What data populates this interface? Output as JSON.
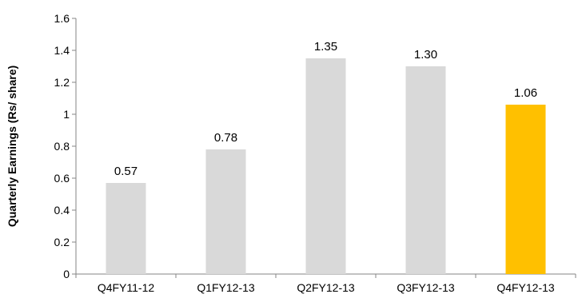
{
  "chart_data": {
    "type": "bar",
    "title": "",
    "xlabel": "",
    "ylabel": "Quarterly Earnings (Rs/ share)",
    "categories": [
      "Q4FY11-12",
      "Q1FY12-13",
      "Q2FY12-13",
      "Q3FY12-13",
      "Q4FY12-13"
    ],
    "values": [
      0.57,
      0.78,
      1.35,
      1.3,
      1.06
    ],
    "data_labels": [
      "0.57",
      "0.78",
      "1.35",
      "1.30",
      "1.06"
    ],
    "ylim": [
      0,
      1.6
    ],
    "yticks": [
      0,
      0.2,
      0.4,
      0.6,
      0.8,
      1,
      1.2,
      1.4,
      1.6
    ],
    "ytick_labels": [
      "0",
      "0.2",
      "0.4",
      "0.6",
      "0.8",
      "1",
      "1.2",
      "1.4",
      "1.6"
    ],
    "grid": false,
    "legend": "none",
    "colors": [
      "#d9d9d9",
      "#d9d9d9",
      "#d9d9d9",
      "#d9d9d9",
      "#ffc000"
    ]
  }
}
